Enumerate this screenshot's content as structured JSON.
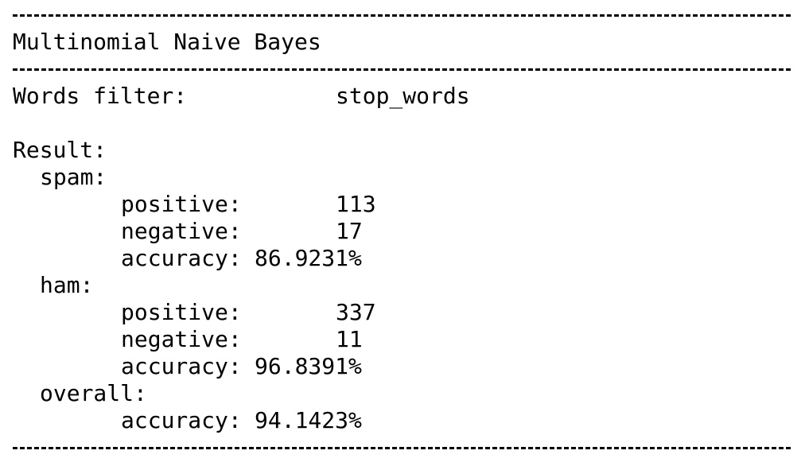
{
  "title": "Multinomial Naive Bayes",
  "filter": {
    "label": "Words filter:",
    "value": "stop_words"
  },
  "result_label": "Result:",
  "spam": {
    "label": "spam:",
    "positive_label": "positive:",
    "positive_value": "113",
    "negative_label": "negative:",
    "negative_value": "17",
    "accuracy_label": "accuracy:",
    "accuracy_value": "86.9231%"
  },
  "ham": {
    "label": "ham:",
    "positive_label": "positive:",
    "positive_value": "337",
    "negative_label": "negative:",
    "negative_value": "11",
    "accuracy_label": "accuracy:",
    "accuracy_value": "96.8391%"
  },
  "overall": {
    "label": "overall:",
    "accuracy_label": "accuracy:",
    "accuracy_value": "94.1423%"
  }
}
